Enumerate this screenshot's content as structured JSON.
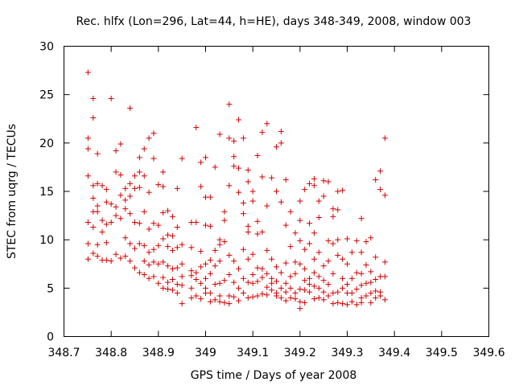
{
  "chart_data": {
    "type": "scatter",
    "title": "Rec. hlfx (Lon=296, Lat=44, h=HE), days 348-349, 2008, window 003",
    "xlabel": "GPS time / Days of year 2008",
    "ylabel": "STEC from uqrg / TECUs",
    "xlim": [
      348.7,
      349.6
    ],
    "ylim": [
      0,
      30
    ],
    "xticks": [
      "348.7",
      "348.8",
      "348.9",
      "349",
      "349.1",
      "349.2",
      "349.3",
      "349.4",
      "349.5",
      "349.6"
    ],
    "yticks": [
      "0",
      "5",
      "10",
      "15",
      "20",
      "25",
      "30"
    ],
    "grid": false,
    "marker": "+",
    "color": "#d40000",
    "points": [
      [
        348.751,
        27.3
      ],
      [
        348.751,
        20.5
      ],
      [
        348.751,
        19.4
      ],
      [
        348.751,
        16.6
      ],
      [
        348.751,
        11.8
      ],
      [
        348.751,
        9.6
      ],
      [
        348.751,
        8.0
      ],
      [
        348.762,
        24.6
      ],
      [
        348.762,
        22.6
      ],
      [
        348.762,
        15.6
      ],
      [
        348.762,
        14.3
      ],
      [
        348.762,
        12.9
      ],
      [
        348.762,
        11.3
      ],
      [
        348.762,
        8.6
      ],
      [
        348.771,
        18.9
      ],
      [
        348.771,
        15.8
      ],
      [
        348.771,
        13.5
      ],
      [
        348.771,
        12.9
      ],
      [
        348.771,
        9.5
      ],
      [
        348.771,
        8.3
      ],
      [
        348.781,
        15.6
      ],
      [
        348.781,
        12.0
      ],
      [
        348.781,
        10.8
      ],
      [
        348.781,
        7.9
      ],
      [
        348.79,
        15.2
      ],
      [
        348.79,
        13.9
      ],
      [
        348.79,
        11.6
      ],
      [
        348.79,
        9.7
      ],
      [
        348.79,
        7.9
      ],
      [
        348.8,
        24.6
      ],
      [
        348.8,
        13.7
      ],
      [
        348.8,
        11.8
      ],
      [
        348.8,
        7.8
      ],
      [
        348.81,
        19.2
      ],
      [
        348.81,
        17.0
      ],
      [
        348.81,
        13.4
      ],
      [
        348.81,
        12.5
      ],
      [
        348.81,
        8.5
      ],
      [
        348.82,
        19.9
      ],
      [
        348.82,
        16.7
      ],
      [
        348.82,
        14.6
      ],
      [
        348.82,
        12.2
      ],
      [
        348.82,
        8.1
      ],
      [
        348.83,
        15.3
      ],
      [
        348.83,
        14.1
      ],
      [
        348.83,
        13.2
      ],
      [
        348.83,
        10.2
      ],
      [
        348.83,
        8.3
      ],
      [
        348.84,
        23.6
      ],
      [
        348.84,
        15.8
      ],
      [
        348.84,
        14.5
      ],
      [
        348.84,
        12.7
      ],
      [
        348.84,
        9.6
      ],
      [
        348.84,
        7.8
      ],
      [
        348.85,
        16.6
      ],
      [
        348.85,
        15.3
      ],
      [
        348.85,
        11.8
      ],
      [
        348.85,
        9.1
      ],
      [
        348.85,
        7.1
      ],
      [
        348.86,
        18.5
      ],
      [
        348.86,
        17.0
      ],
      [
        348.86,
        15.4
      ],
      [
        348.86,
        11.7
      ],
      [
        348.86,
        9.6
      ],
      [
        348.86,
        6.6
      ],
      [
        348.87,
        19.4
      ],
      [
        348.87,
        16.6
      ],
      [
        348.87,
        12.9
      ],
      [
        348.87,
        9.4
      ],
      [
        348.87,
        7.8
      ],
      [
        348.87,
        6.4
      ],
      [
        348.88,
        20.5
      ],
      [
        348.88,
        14.9
      ],
      [
        348.88,
        11.1
      ],
      [
        348.88,
        8.7
      ],
      [
        348.88,
        7.4
      ],
      [
        348.88,
        6.0
      ],
      [
        348.89,
        21.0
      ],
      [
        348.89,
        18.4
      ],
      [
        348.89,
        11.7
      ],
      [
        348.89,
        9.0
      ],
      [
        348.89,
        7.7
      ],
      [
        348.89,
        6.2
      ],
      [
        348.9,
        15.7
      ],
      [
        348.9,
        11.5
      ],
      [
        348.9,
        9.4
      ],
      [
        348.9,
        7.5
      ],
      [
        348.9,
        5.5
      ],
      [
        348.91,
        17.0
      ],
      [
        348.91,
        15.5
      ],
      [
        348.91,
        12.8
      ],
      [
        348.91,
        10.1
      ],
      [
        348.91,
        7.7
      ],
      [
        348.91,
        6.1
      ],
      [
        348.91,
        5.0
      ],
      [
        348.92,
        13.0
      ],
      [
        348.92,
        10.5
      ],
      [
        348.92,
        9.3
      ],
      [
        348.92,
        7.3
      ],
      [
        348.92,
        5.6
      ],
      [
        348.92,
        4.9
      ],
      [
        348.93,
        12.4
      ],
      [
        348.93,
        10.4
      ],
      [
        348.93,
        8.9
      ],
      [
        348.93,
        7.0
      ],
      [
        348.93,
        5.9
      ],
      [
        348.93,
        4.8
      ],
      [
        348.94,
        15.3
      ],
      [
        348.94,
        11.3
      ],
      [
        348.94,
        9.2
      ],
      [
        348.94,
        7.1
      ],
      [
        348.94,
        5.4
      ],
      [
        348.94,
        4.5
      ],
      [
        348.95,
        18.4
      ],
      [
        348.95,
        9.5
      ],
      [
        348.95,
        7.5
      ],
      [
        348.95,
        6.2
      ],
      [
        348.95,
        5.3
      ],
      [
        348.95,
        3.4
      ],
      [
        348.97,
        11.8
      ],
      [
        348.97,
        9.2
      ],
      [
        348.97,
        6.8
      ],
      [
        348.97,
        6.3
      ],
      [
        348.97,
        5.0
      ],
      [
        348.97,
        4.0
      ],
      [
        348.98,
        21.6
      ],
      [
        348.98,
        11.8
      ],
      [
        348.98,
        6.6
      ],
      [
        348.98,
        5.9
      ],
      [
        348.98,
        4.2
      ],
      [
        348.99,
        18.0
      ],
      [
        348.99,
        15.5
      ],
      [
        348.99,
        8.8
      ],
      [
        348.99,
        7.2
      ],
      [
        348.99,
        5.5
      ],
      [
        348.99,
        3.9
      ],
      [
        349.0,
        18.5
      ],
      [
        349.0,
        14.4
      ],
      [
        349.0,
        11.5
      ],
      [
        349.0,
        7.5
      ],
      [
        349.0,
        6.0
      ],
      [
        349.0,
        5.0
      ],
      [
        349.0,
        4.5
      ],
      [
        349.01,
        14.4
      ],
      [
        349.01,
        11.4
      ],
      [
        349.01,
        7.9
      ],
      [
        349.01,
        6.5
      ],
      [
        349.01,
        4.5
      ],
      [
        349.01,
        3.6
      ],
      [
        349.02,
        17.5
      ],
      [
        349.02,
        8.9
      ],
      [
        349.02,
        7.3
      ],
      [
        349.02,
        5.4
      ],
      [
        349.02,
        3.8
      ],
      [
        349.03,
        20.9
      ],
      [
        349.03,
        10.0
      ],
      [
        349.03,
        9.5
      ],
      [
        349.03,
        7.8
      ],
      [
        349.03,
        5.5
      ],
      [
        349.03,
        4.2
      ],
      [
        349.03,
        3.6
      ],
      [
        349.04,
        12.9
      ],
      [
        349.04,
        12.0
      ],
      [
        349.04,
        9.8
      ],
      [
        349.04,
        5.8
      ],
      [
        349.04,
        3.5
      ],
      [
        349.05,
        24.0
      ],
      [
        349.05,
        20.5
      ],
      [
        349.05,
        15.6
      ],
      [
        349.05,
        8.4
      ],
      [
        349.05,
        6.4
      ],
      [
        349.05,
        4.2
      ],
      [
        349.05,
        3.4
      ],
      [
        349.06,
        20.2
      ],
      [
        349.06,
        18.6
      ],
      [
        349.06,
        17.6
      ],
      [
        349.06,
        7.8
      ],
      [
        349.06,
        5.6
      ],
      [
        349.06,
        4.1
      ],
      [
        349.07,
        22.4
      ],
      [
        349.07,
        17.4
      ],
      [
        349.07,
        14.9
      ],
      [
        349.07,
        7.0
      ],
      [
        349.07,
        5.0
      ],
      [
        349.07,
        3.7
      ],
      [
        349.08,
        20.5
      ],
      [
        349.08,
        13.8
      ],
      [
        349.08,
        12.7
      ],
      [
        349.08,
        9.0
      ],
      [
        349.08,
        6.0
      ],
      [
        349.08,
        4.5
      ],
      [
        349.09,
        17.2
      ],
      [
        349.09,
        16.0
      ],
      [
        349.09,
        11.4
      ],
      [
        349.09,
        10.8
      ],
      [
        349.09,
        8.0
      ],
      [
        349.09,
        5.6
      ],
      [
        349.09,
        4.0
      ],
      [
        349.1,
        15.0
      ],
      [
        349.1,
        14.0
      ],
      [
        349.1,
        8.5
      ],
      [
        349.1,
        6.4
      ],
      [
        349.1,
        5.5
      ],
      [
        349.1,
        4.1
      ],
      [
        349.11,
        18.7
      ],
      [
        349.11,
        11.9
      ],
      [
        349.11,
        10.6
      ],
      [
        349.11,
        7.1
      ],
      [
        349.11,
        5.7
      ],
      [
        349.11,
        4.2
      ],
      [
        349.12,
        21.1
      ],
      [
        349.12,
        16.5
      ],
      [
        349.12,
        10.8
      ],
      [
        349.12,
        7.0
      ],
      [
        349.12,
        6.1
      ],
      [
        349.12,
        4.4
      ],
      [
        349.13,
        22.0
      ],
      [
        349.13,
        13.5
      ],
      [
        349.13,
        8.9
      ],
      [
        349.13,
        6.5
      ],
      [
        349.13,
        5.1
      ],
      [
        349.13,
        4.3
      ],
      [
        349.14,
        16.4
      ],
      [
        349.14,
        8.0
      ],
      [
        349.14,
        6.0
      ],
      [
        349.14,
        5.5
      ],
      [
        349.14,
        4.8
      ],
      [
        349.15,
        19.6
      ],
      [
        349.15,
        15.0
      ],
      [
        349.15,
        7.2
      ],
      [
        349.15,
        5.7
      ],
      [
        349.15,
        4.5
      ],
      [
        349.15,
        4.2
      ],
      [
        349.16,
        21.2
      ],
      [
        349.16,
        20.0
      ],
      [
        349.16,
        13.9
      ],
      [
        349.16,
        6.6
      ],
      [
        349.16,
        5.0
      ],
      [
        349.16,
        4.0
      ],
      [
        349.17,
        16.2
      ],
      [
        349.17,
        11.5
      ],
      [
        349.17,
        7.6
      ],
      [
        349.17,
        5.5
      ],
      [
        349.17,
        4.6
      ],
      [
        349.17,
        3.7
      ],
      [
        349.18,
        12.9
      ],
      [
        349.18,
        9.3
      ],
      [
        349.18,
        6.2
      ],
      [
        349.18,
        5.0
      ],
      [
        349.18,
        4.0
      ],
      [
        349.19,
        10.7
      ],
      [
        349.19,
        7.7
      ],
      [
        349.19,
        6.5
      ],
      [
        349.19,
        4.5
      ],
      [
        349.19,
        3.9
      ],
      [
        349.2,
        14.0
      ],
      [
        349.2,
        12.0
      ],
      [
        349.2,
        9.9
      ],
      [
        349.2,
        7.5
      ],
      [
        349.2,
        4.9
      ],
      [
        349.2,
        3.6
      ],
      [
        349.2,
        2.9
      ],
      [
        349.21,
        15.2
      ],
      [
        349.21,
        9.0
      ],
      [
        349.21,
        7.0
      ],
      [
        349.21,
        5.8
      ],
      [
        349.21,
        4.8
      ],
      [
        349.21,
        3.5
      ],
      [
        349.22,
        15.8
      ],
      [
        349.22,
        11.7
      ],
      [
        349.22,
        9.6
      ],
      [
        349.22,
        6.0
      ],
      [
        349.22,
        5.4
      ],
      [
        349.22,
        4.6
      ],
      [
        349.23,
        16.3
      ],
      [
        349.23,
        15.6
      ],
      [
        349.23,
        10.7
      ],
      [
        349.23,
        8.0
      ],
      [
        349.23,
        6.6
      ],
      [
        349.23,
        5.2
      ],
      [
        349.23,
        3.9
      ],
      [
        349.24,
        14.0
      ],
      [
        349.24,
        12.3
      ],
      [
        349.24,
        8.7
      ],
      [
        349.24,
        6.2
      ],
      [
        349.24,
        5.0
      ],
      [
        349.24,
        4.0
      ],
      [
        349.25,
        16.1
      ],
      [
        349.25,
        14.5
      ],
      [
        349.25,
        7.3
      ],
      [
        349.25,
        5.8
      ],
      [
        349.25,
        4.6
      ],
      [
        349.25,
        3.8
      ],
      [
        349.26,
        16.0
      ],
      [
        349.26,
        9.9
      ],
      [
        349.26,
        7.8
      ],
      [
        349.26,
        5.4
      ],
      [
        349.26,
        4.2
      ],
      [
        349.27,
        13.2
      ],
      [
        349.27,
        12.4
      ],
      [
        349.27,
        9.6
      ],
      [
        349.27,
        6.5
      ],
      [
        349.27,
        4.5
      ],
      [
        349.27,
        3.4
      ],
      [
        349.28,
        15.0
      ],
      [
        349.28,
        13.1
      ],
      [
        349.28,
        10.0
      ],
      [
        349.28,
        8.4
      ],
      [
        349.28,
        4.6
      ],
      [
        349.28,
        3.5
      ],
      [
        349.29,
        15.1
      ],
      [
        349.29,
        8.0
      ],
      [
        349.29,
        6.0
      ],
      [
        349.29,
        5.0
      ],
      [
        349.29,
        3.4
      ],
      [
        349.3,
        10.1
      ],
      [
        349.3,
        7.5
      ],
      [
        349.3,
        5.4
      ],
      [
        349.3,
        4.5
      ],
      [
        349.3,
        3.3
      ],
      [
        349.31,
        8.7
      ],
      [
        349.31,
        6.0
      ],
      [
        349.31,
        4.5
      ],
      [
        349.31,
        3.6
      ],
      [
        349.32,
        9.9
      ],
      [
        349.32,
        6.6
      ],
      [
        349.32,
        4.9
      ],
      [
        349.32,
        3.3
      ],
      [
        349.33,
        12.2
      ],
      [
        349.33,
        8.7
      ],
      [
        349.33,
        6.5
      ],
      [
        349.33,
        5.3
      ],
      [
        349.33,
        4.0
      ],
      [
        349.33,
        3.5
      ],
      [
        349.34,
        9.8
      ],
      [
        349.34,
        7.4
      ],
      [
        349.34,
        5.5
      ],
      [
        349.34,
        4.2
      ],
      [
        349.35,
        10.2
      ],
      [
        349.35,
        6.7
      ],
      [
        349.35,
        5.6
      ],
      [
        349.35,
        4.5
      ],
      [
        349.35,
        3.5
      ],
      [
        349.36,
        16.2
      ],
      [
        349.36,
        8.2
      ],
      [
        349.36,
        5.9
      ],
      [
        349.36,
        4.7
      ],
      [
        349.36,
        4.0
      ],
      [
        349.37,
        17.1
      ],
      [
        349.37,
        15.2
      ],
      [
        349.37,
        6.2
      ],
      [
        349.37,
        4.6
      ],
      [
        349.37,
        4.2
      ],
      [
        349.38,
        20.5
      ],
      [
        349.38,
        14.6
      ],
      [
        349.38,
        7.7
      ],
      [
        349.38,
        6.2
      ],
      [
        349.38,
        3.8
      ]
    ]
  }
}
